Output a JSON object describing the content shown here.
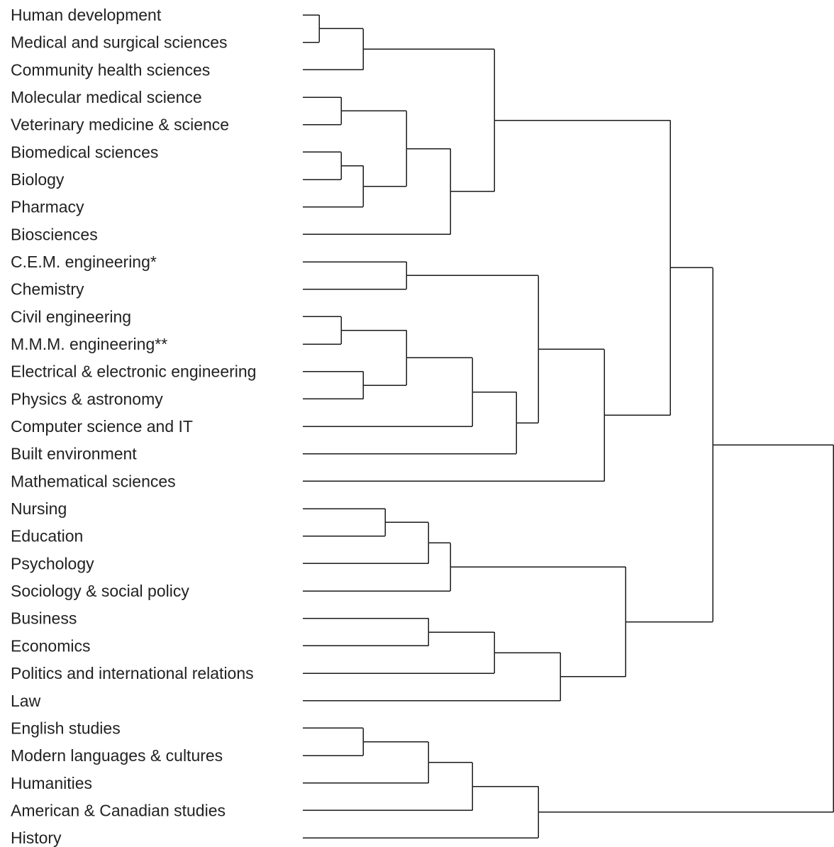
{
  "dendrogram": {
    "leaves": [
      "Human development",
      "Medical and surgical sciences",
      "Community health sciences",
      "Molecular medical science",
      "Veterinary medicine & science",
      "Biomedical sciences",
      "Biology",
      "Pharmacy",
      "Biosciences",
      "C.E.M. engineering*",
      "Chemistry",
      "Civil engineering",
      "M.M.M. engineering**",
      "Electrical & electronic engineering",
      "Physics & astronomy",
      "Computer science and IT",
      "Built environment",
      "Mathematical sciences",
      "Nursing",
      "Education",
      "Psychology",
      "Sociology & social policy",
      "Business",
      "Economics",
      "Politics and international relations",
      "Law",
      "English studies",
      "Modern languages & cultures",
      "Humanities",
      "American & Canadian studies",
      "History"
    ],
    "line_color": "#1a1a1a",
    "text_color": "#222222"
  }
}
